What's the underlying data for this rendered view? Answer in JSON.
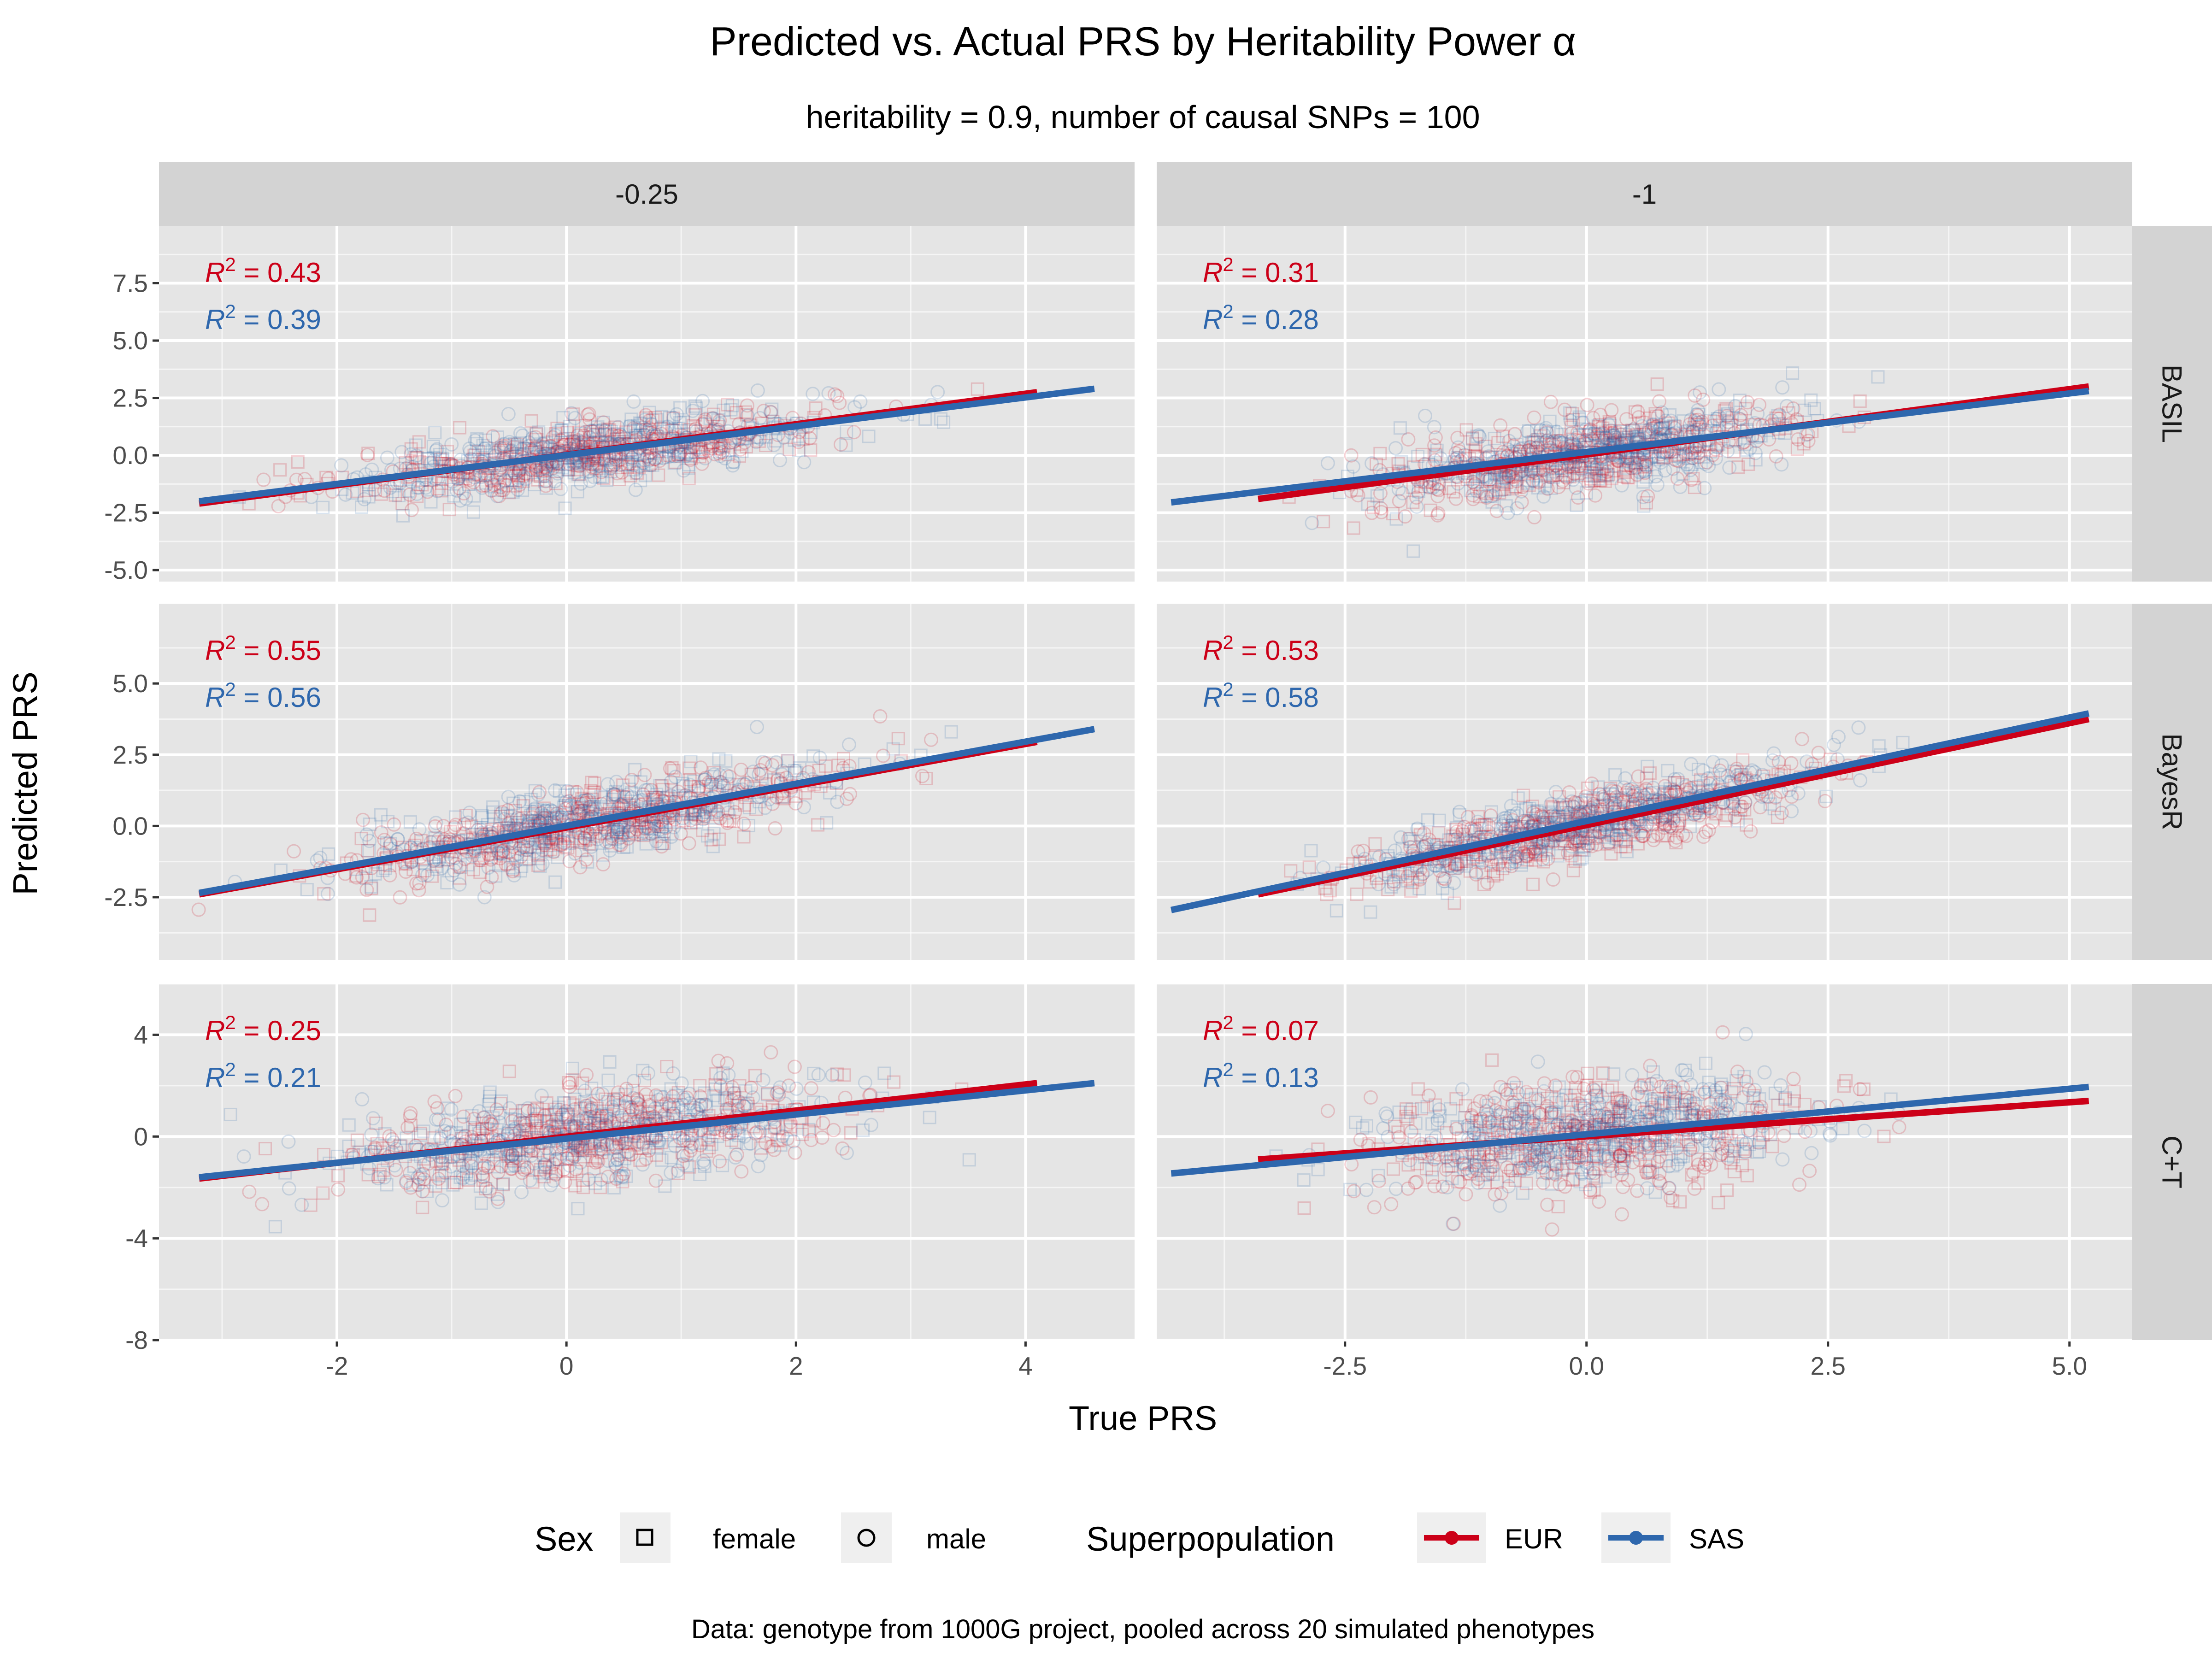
{
  "colors": {
    "EUR": "#cc0018",
    "SAS": "#2e67ad",
    "panel_bg": "#e5e5e5",
    "strip_bg": "#d3d3d3",
    "grid": "#ffffff"
  },
  "chart_data": {
    "type": "scatter",
    "title": "Predicted vs. Actual PRS by Heritability Power α",
    "subtitle": "heritability = 0.9, number of causal SNPs = 100",
    "xlabel": "True PRS",
    "ylabel": "Predicted PRS",
    "caption": "Data: genotype from 1000G project, pooled across 20 simulated phenotypes",
    "columns": [
      {
        "label": "-0.25",
        "xlim": [
          -3.55,
          4.95
        ],
        "xticks": [
          -2,
          0,
          2,
          4
        ],
        "xtick_labels": [
          "-2",
          "0",
          "2",
          "4"
        ]
      },
      {
        "label": "-1",
        "xlim": [
          -4.45,
          5.65
        ],
        "xticks": [
          -2.5,
          0,
          2.5,
          5
        ],
        "xtick_labels": [
          "-2.5",
          "0.0",
          "2.5",
          "5.0"
        ]
      }
    ],
    "rows": [
      {
        "label": "BASIL",
        "ylim": [
          -5.5,
          10.0
        ],
        "yticks": [
          -5,
          -2.5,
          0,
          2.5,
          5,
          7.5
        ],
        "ytick_labels": [
          "-5.0",
          "-2.5",
          "0.0",
          "2.5",
          "5.0",
          "7.5"
        ]
      },
      {
        "label": "BayesR",
        "ylim": [
          -4.7,
          7.8
        ],
        "yticks": [
          -2.5,
          0,
          2.5,
          5
        ],
        "ytick_labels": [
          "-2.5",
          "0.0",
          "2.5",
          "5.0"
        ]
      },
      {
        "label": "C+T",
        "ylim": [
          -8.0,
          6.0
        ],
        "yticks": [
          -8,
          -4,
          0,
          4
        ],
        "ytick_labels": [
          "-8",
          "-4",
          "0",
          "4"
        ]
      }
    ],
    "panels": [
      {
        "row": 0,
        "col": 0,
        "r2": {
          "EUR": "0.43",
          "SAS": "0.39"
        },
        "lines": {
          "EUR": [
            [
              -3.2,
              -2.1
            ],
            [
              4.1,
              2.75
            ]
          ],
          "SAS": [
            [
              -3.2,
              -2.0
            ],
            [
              4.6,
              2.9
            ]
          ]
        },
        "cloud": {
          "xmean": 0.2,
          "xsd": 1.05,
          "EUR": {
            "slope": 0.665,
            "intercept": 0.0,
            "noise": 0.65
          },
          "SAS": {
            "slope": 0.63,
            "intercept": 0.0,
            "noise": 0.7
          }
        }
      },
      {
        "row": 0,
        "col": 1,
        "r2": {
          "EUR": "0.31",
          "SAS": "0.28"
        },
        "lines": {
          "EUR": [
            [
              -3.4,
              -1.9
            ],
            [
              5.2,
              3.0
            ]
          ],
          "SAS": [
            [
              -4.3,
              -2.05
            ],
            [
              5.2,
              2.8
            ]
          ]
        },
        "cloud": {
          "xmean": 0.0,
          "xsd": 1.1,
          "EUR": {
            "slope": 0.57,
            "intercept": 0.03,
            "noise": 0.8
          },
          "SAS": {
            "slope": 0.51,
            "intercept": 0.05,
            "noise": 0.8
          }
        }
      },
      {
        "row": 1,
        "col": 0,
        "r2": {
          "EUR": "0.55",
          "SAS": "0.56"
        },
        "lines": {
          "EUR": [
            [
              -3.2,
              -2.4
            ],
            [
              4.1,
              2.95
            ]
          ],
          "SAS": [
            [
              -3.2,
              -2.35
            ],
            [
              4.6,
              3.4
            ]
          ]
        },
        "cloud": {
          "xmean": 0.2,
          "xsd": 1.05,
          "EUR": {
            "slope": 0.733,
            "intercept": -0.05,
            "noise": 0.6
          },
          "SAS": {
            "slope": 0.737,
            "intercept": 0.01,
            "noise": 0.6
          }
        }
      },
      {
        "row": 1,
        "col": 1,
        "r2": {
          "EUR": "0.53",
          "SAS": "0.58"
        },
        "lines": {
          "EUR": [
            [
              -3.4,
              -2.4
            ],
            [
              5.2,
              3.75
            ]
          ],
          "SAS": [
            [
              -4.3,
              -2.95
            ],
            [
              5.2,
              3.95
            ]
          ]
        },
        "cloud": {
          "xmean": 0.0,
          "xsd": 1.1,
          "EUR": {
            "slope": 0.715,
            "intercept": 0.03,
            "noise": 0.6
          },
          "SAS": {
            "slope": 0.726,
            "intercept": 0.17,
            "noise": 0.55
          }
        }
      },
      {
        "row": 2,
        "col": 0,
        "r2": {
          "EUR": "0.25",
          "SAS": "0.21"
        },
        "lines": {
          "EUR": [
            [
              -3.2,
              -1.65
            ],
            [
              4.1,
              2.1
            ]
          ],
          "SAS": [
            [
              -3.2,
              -1.6
            ],
            [
              4.6,
              2.1
            ]
          ]
        },
        "cloud": {
          "xmean": 0.2,
          "xsd": 1.05,
          "EUR": {
            "slope": 0.514,
            "intercept": 0.0,
            "noise": 0.9
          },
          "SAS": {
            "slope": 0.474,
            "intercept": -0.08,
            "noise": 0.95
          }
        }
      },
      {
        "row": 2,
        "col": 1,
        "r2": {
          "EUR": "0.07",
          "SAS": "0.13"
        },
        "lines": {
          "EUR": [
            [
              -3.4,
              -0.9
            ],
            [
              5.2,
              1.4
            ]
          ],
          "SAS": [
            [
              -4.3,
              -1.45
            ],
            [
              5.2,
              1.95
            ]
          ]
        },
        "cloud": {
          "xmean": 0.0,
          "xsd": 1.1,
          "EUR": {
            "slope": 0.267,
            "intercept": 0.0,
            "noise": 1.2
          },
          "SAS": {
            "slope": 0.358,
            "intercept": 0.09,
            "noise": 0.95
          }
        }
      }
    ],
    "legend": {
      "placement": "bottom",
      "sex": {
        "title": "Sex",
        "items": [
          {
            "label": "female",
            "shape": "square"
          },
          {
            "label": "male",
            "shape": "circle"
          }
        ]
      },
      "superpopulation": {
        "title": "Superpopulation",
        "items": [
          {
            "label": "EUR",
            "color": "#cc0018"
          },
          {
            "label": "SAS",
            "color": "#2e67ad"
          }
        ]
      }
    }
  }
}
